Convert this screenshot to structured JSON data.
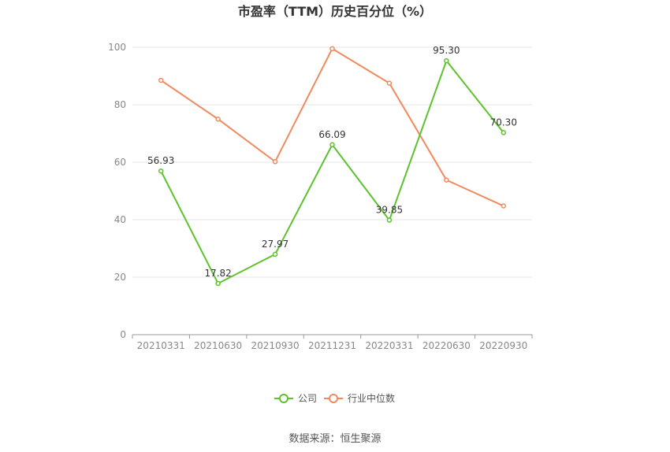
{
  "chart_data": {
    "type": "line",
    "title": "市盈率（TTM）历史百分位（%）",
    "categories": [
      "20210331",
      "20210630",
      "20210930",
      "20211231",
      "20220331",
      "20220630",
      "20220930"
    ],
    "series": [
      {
        "name": "公司",
        "color": "#5cc22e",
        "values": [
          56.93,
          17.82,
          27.97,
          66.09,
          39.85,
          95.3,
          70.3
        ],
        "labels": [
          "56.93",
          "17.82",
          "27.97",
          "66.09",
          "39.85",
          "95.30",
          "70.30"
        ]
      },
      {
        "name": "行业中位数",
        "color": "#f08a5d",
        "values": [
          88.5,
          75.0,
          60.2,
          99.5,
          87.5,
          53.8,
          44.8
        ]
      }
    ],
    "ylim": [
      0,
      100
    ],
    "yticks": [
      0,
      20,
      40,
      60,
      80,
      100
    ],
    "grid": true,
    "legend": "bottom-center"
  },
  "source_text": "数据来源：恒生聚源"
}
